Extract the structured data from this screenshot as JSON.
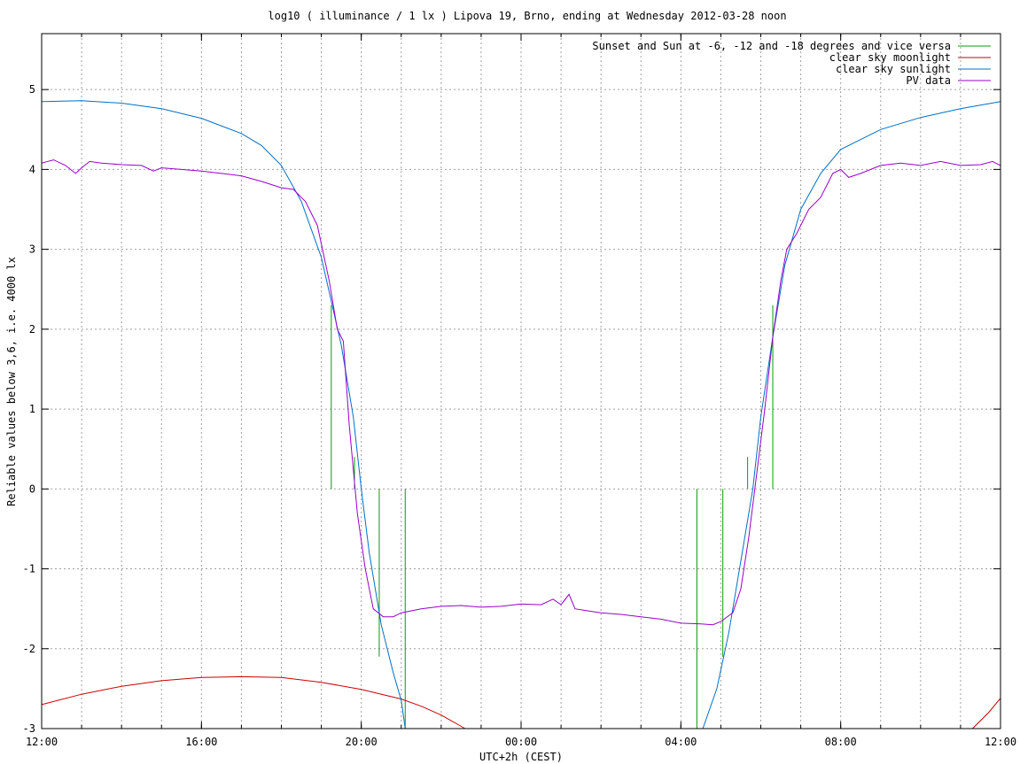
{
  "chart_data": {
    "type": "line",
    "title": "log10 ( illuminance / 1 lx ) Lipova 19, Brno, ending at Wednesday 2012-03-28 noon",
    "xlabel": "UTC+2h (CEST)",
    "ylabel": "Reliable values below 3,6, i.e. 4000 lx",
    "x_unit": "hours",
    "xlim": [
      12,
      36
    ],
    "ylim": [
      -3,
      5.7
    ],
    "grid": true,
    "legend_position": "top-right",
    "x_tick_labels": [
      {
        "x": 12,
        "label": "12:00"
      },
      {
        "x": 16,
        "label": "16:00"
      },
      {
        "x": 20,
        "label": "20:00"
      },
      {
        "x": 24,
        "label": "00:00"
      },
      {
        "x": 28,
        "label": "04:00"
      },
      {
        "x": 32,
        "label": "08:00"
      },
      {
        "x": 36,
        "label": "12:00"
      }
    ],
    "y_ticks": [
      -3,
      -2,
      -1,
      0,
      1,
      2,
      3,
      4,
      5
    ],
    "series": [
      {
        "name": "Sunset and Sun at -6, -12 and -18 degrees and vice versa",
        "color": "#00a000",
        "style": "impulses",
        "points": [
          [
            19.25,
            2.3
          ],
          [
            19.83,
            0.4
          ],
          [
            20.45,
            -2.1
          ],
          [
            21.1,
            -3.0
          ],
          [
            28.4,
            -3.0
          ],
          [
            29.05,
            -2.1
          ],
          [
            29.67,
            0.4
          ],
          [
            30.3,
            2.3
          ]
        ]
      },
      {
        "name": "clear sky moonlight",
        "color": "#cc0000",
        "style": "line",
        "points": [
          [
            12,
            -2.7
          ],
          [
            13,
            -2.57
          ],
          [
            14,
            -2.47
          ],
          [
            15,
            -2.4
          ],
          [
            16,
            -2.36
          ],
          [
            17,
            -2.35
          ],
          [
            18,
            -2.36
          ],
          [
            19,
            -2.42
          ],
          [
            20,
            -2.51
          ],
          [
            21,
            -2.63
          ],
          [
            21.5,
            -2.72
          ],
          [
            22,
            -2.83
          ],
          [
            22.6,
            -3.0
          ]
        ]
      },
      {
        "name": "clear sky moonlight",
        "color": "#cc0000",
        "style": "line",
        "points": [
          [
            35.3,
            -3.0
          ],
          [
            35.7,
            -2.8
          ],
          [
            36,
            -2.62
          ]
        ]
      },
      {
        "name": "clear sky sunlight",
        "color": "#0070c8",
        "style": "line",
        "points": [
          [
            12,
            4.85
          ],
          [
            13,
            4.86
          ],
          [
            14,
            4.83
          ],
          [
            15,
            4.76
          ],
          [
            16,
            4.64
          ],
          [
            17,
            4.45
          ],
          [
            17.5,
            4.3
          ],
          [
            18,
            4.05
          ],
          [
            18.5,
            3.6
          ],
          [
            19,
            2.9
          ],
          [
            19.5,
            1.8
          ],
          [
            19.8,
            0.9
          ],
          [
            20,
            0
          ],
          [
            20.2,
            -0.8
          ],
          [
            20.5,
            -1.7
          ],
          [
            20.8,
            -2.3
          ],
          [
            21,
            -2.65
          ],
          [
            21.1,
            -3.0
          ]
        ]
      },
      {
        "name": "clear sky sunlight",
        "color": "#0070c8",
        "style": "line",
        "points": [
          [
            28.55,
            -3.0
          ],
          [
            28.9,
            -2.5
          ],
          [
            29.2,
            -1.8
          ],
          [
            29.5,
            -0.9
          ],
          [
            29.8,
            0
          ],
          [
            30,
            0.9
          ],
          [
            30.3,
            1.9
          ],
          [
            30.6,
            2.8
          ],
          [
            31,
            3.5
          ],
          [
            31.5,
            3.95
          ],
          [
            32,
            4.25
          ],
          [
            33,
            4.5
          ],
          [
            34,
            4.65
          ],
          [
            35,
            4.76
          ],
          [
            36,
            4.85
          ]
        ]
      },
      {
        "name": "PV data",
        "color": "#9900cc",
        "style": "line",
        "points": [
          [
            12,
            4.08
          ],
          [
            12.3,
            4.12
          ],
          [
            12.6,
            4.05
          ],
          [
            12.85,
            3.95
          ],
          [
            13.0,
            4.02
          ],
          [
            13.2,
            4.1
          ],
          [
            13.5,
            4.08
          ],
          [
            14,
            4.06
          ],
          [
            14.5,
            4.05
          ],
          [
            14.8,
            3.98
          ],
          [
            15,
            4.02
          ],
          [
            15.5,
            4.0
          ],
          [
            16,
            3.98
          ],
          [
            16.5,
            3.95
          ],
          [
            17,
            3.92
          ],
          [
            17.5,
            3.85
          ],
          [
            18,
            3.77
          ],
          [
            18.3,
            3.75
          ],
          [
            18.6,
            3.6
          ],
          [
            18.9,
            3.3
          ],
          [
            19.2,
            2.6
          ],
          [
            19.4,
            2.0
          ],
          [
            19.55,
            1.85
          ],
          [
            19.7,
            0.8
          ],
          [
            19.9,
            -0.3
          ],
          [
            20.1,
            -1.0
          ],
          [
            20.3,
            -1.5
          ],
          [
            20.55,
            -1.6
          ],
          [
            20.8,
            -1.6
          ],
          [
            21.0,
            -1.55
          ],
          [
            21.5,
            -1.5
          ],
          [
            22,
            -1.47
          ],
          [
            22.5,
            -1.46
          ],
          [
            23,
            -1.48
          ],
          [
            23.5,
            -1.47
          ],
          [
            24,
            -1.44
          ],
          [
            24.5,
            -1.45
          ],
          [
            24.8,
            -1.38
          ],
          [
            25.0,
            -1.45
          ],
          [
            25.2,
            -1.32
          ],
          [
            25.35,
            -1.5
          ],
          [
            25.6,
            -1.52
          ],
          [
            26,
            -1.55
          ],
          [
            26.5,
            -1.57
          ],
          [
            27,
            -1.6
          ],
          [
            27.5,
            -1.63
          ],
          [
            28,
            -1.68
          ],
          [
            28.5,
            -1.69
          ],
          [
            28.8,
            -1.7
          ],
          [
            29.0,
            -1.66
          ],
          [
            29.3,
            -1.55
          ],
          [
            29.5,
            -1.25
          ],
          [
            29.7,
            -0.6
          ],
          [
            29.9,
            0.2
          ],
          [
            30.1,
            1.0
          ],
          [
            30.3,
            1.9
          ],
          [
            30.5,
            2.6
          ],
          [
            30.65,
            3.0
          ],
          [
            30.9,
            3.2
          ],
          [
            31.2,
            3.5
          ],
          [
            31.5,
            3.65
          ],
          [
            31.8,
            3.95
          ],
          [
            32,
            4.0
          ],
          [
            32.2,
            3.9
          ],
          [
            32.5,
            3.95
          ],
          [
            33,
            4.05
          ],
          [
            33.5,
            4.08
          ],
          [
            34,
            4.05
          ],
          [
            34.5,
            4.1
          ],
          [
            35,
            4.05
          ],
          [
            35.5,
            4.06
          ],
          [
            35.8,
            4.1
          ],
          [
            36,
            4.05
          ]
        ]
      }
    ]
  }
}
